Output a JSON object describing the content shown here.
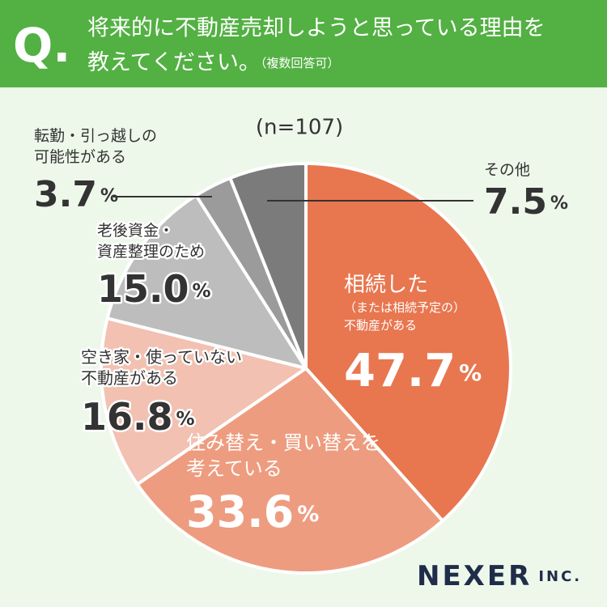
{
  "header": {
    "q": "Q.",
    "title_lines": [
      "将来的に不動産売却しようと思っている理由を",
      "教えてください。"
    ],
    "note": "（複数回答可）"
  },
  "chart_data": {
    "type": "pie",
    "subtitle": "(n=107)",
    "categories": [
      "相続した\n（または相続予定の）\n不動産がある",
      "住み替え・買い替えを\n考えている",
      "空き家・使っていない\n不動産がある",
      "老後資金・\n資産整理のため",
      "転勤・引っ越しの\n可能性がある",
      "その他"
    ],
    "values": [
      47.7,
      33.6,
      16.8,
      15.0,
      3.7,
      7.5
    ],
    "value_labels": [
      "47.7%",
      "33.6%",
      "16.8%",
      "15.0%",
      "3.7%",
      "7.5%"
    ],
    "colors": [
      "#e8764f",
      "#ee9c7f",
      "#f2c1b1",
      "#bdbdbd",
      "#9b9b9b",
      "#7b7b7b"
    ]
  },
  "logo": {
    "main": "NEXER",
    "suffix": "INC."
  }
}
